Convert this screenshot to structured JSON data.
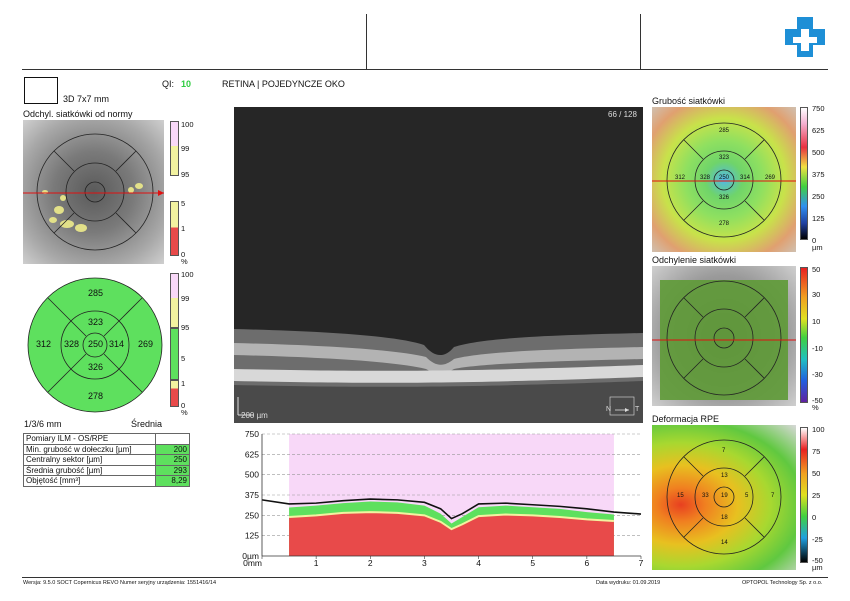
{
  "header": {
    "logo": "optopol-cross-logo"
  },
  "scan": {
    "type_label": "3D  7x7 mm",
    "qi_label": "QI:",
    "qi_value": "10",
    "title": "RETINA | POJEDYNCZE OKO",
    "frame_counter": "66 / 128",
    "scale_bar": "200 µm",
    "nasal": "N",
    "temporal": "T"
  },
  "deviation_map": {
    "title": "Odchyl. siatkówki od normy",
    "scale_top": [
      "100",
      "99",
      "95"
    ],
    "scale_bottom": [
      "5",
      "1",
      "0"
    ],
    "scale_unit": "%"
  },
  "etdrs": {
    "outer_superior": "285",
    "outer_nasal": "312",
    "outer_temporal": "269",
    "outer_inferior": "278",
    "inner_superior": "323",
    "inner_nasal": "328",
    "inner_temporal": "314",
    "inner_inferior": "326",
    "center": "250",
    "scale_labels": [
      "100",
      "99",
      "95",
      "5",
      "1",
      "0"
    ],
    "scale_unit": "%",
    "grid_label": "1/3/6 mm",
    "mode_label": "Średnia"
  },
  "measurements": {
    "header": "Pomiary ILM - OS/RPE",
    "rows": [
      {
        "label": "Min. grubość w dołeczku [µm]",
        "value": "200"
      },
      {
        "label": "Centralny sektor [µm]",
        "value": "250"
      },
      {
        "label": "Średnia grubość [µm]",
        "value": "293"
      },
      {
        "label": "Objętość [mm³]",
        "value": "8,29"
      }
    ]
  },
  "thickness_map": {
    "title": "Grubość siatkówki",
    "scale": [
      "750",
      "625",
      "500",
      "375",
      "250",
      "125",
      "0"
    ],
    "unit": "µm",
    "sectors": {
      "s_out": "285",
      "s_in": "323",
      "n_out": "312",
      "n_in": "328",
      "c": "250",
      "t_in": "314",
      "t_out": "269",
      "i_in": "326",
      "i_out": "278"
    }
  },
  "deviation_map2": {
    "title": "Odchylenie siatkówki",
    "scale": [
      "50",
      "30",
      "10",
      "-10",
      "-30",
      "-50"
    ],
    "unit": "%"
  },
  "rpe_map": {
    "title": "Deformacja RPE",
    "scale": [
      "100",
      "75",
      "50",
      "25",
      "0",
      "-25",
      "-50"
    ],
    "unit": "µm",
    "sectors": {
      "s_out": "7",
      "s_in": "13",
      "n_out": "15",
      "n_in": "33",
      "c": "19",
      "t_in": "5",
      "t_out": "7",
      "i_in": "18",
      "i_out": "14"
    }
  },
  "chart_data": {
    "type": "area",
    "x_ticks": [
      "0mm",
      "1",
      "2",
      "3",
      "4",
      "5",
      "6",
      "7"
    ],
    "y_ticks": [
      "0µm",
      "125",
      "250",
      "375",
      "500",
      "625",
      "750"
    ],
    "xlim": [
      0,
      7
    ],
    "ylim": [
      0,
      750
    ],
    "x": [
      0,
      0.5,
      1,
      1.5,
      2,
      2.5,
      3,
      3.3,
      3.5,
      3.7,
      4,
      4.5,
      5,
      5.5,
      6,
      6.5,
      7
    ],
    "series": [
      {
        "values": [
          345,
          320,
          325,
          340,
          350,
          345,
          330,
          290,
          230,
          260,
          320,
          325,
          315,
          305,
          290,
          270,
          258
        ]
      },
      {
        "values": [
          300,
          298,
          310,
          325,
          335,
          330,
          310,
          260,
          200,
          240,
          300,
          310,
          300,
          290,
          270,
          255,
          245
        ]
      },
      {
        "values": [
          240,
          240,
          250,
          265,
          270,
          265,
          250,
          210,
          165,
          195,
          245,
          255,
          250,
          240,
          225,
          215,
          210
        ]
      }
    ],
    "normal_band_x": [
      0.5,
      6.5
    ]
  },
  "footer": {
    "version": "Wersja: 9.5.0   SOCT Copernicus REVO   Numer seryjny urządzenia: 1551416/14",
    "print_date": "Data wydruku: 01.09.2019",
    "company": "OPTOPOL Technology Sp. z o.o."
  }
}
